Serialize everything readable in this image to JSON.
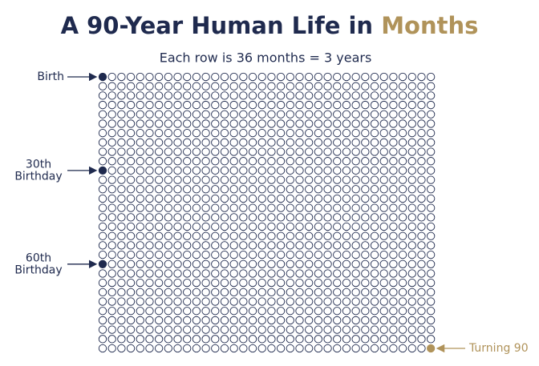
{
  "title": {
    "text": "A 90-Year Human Life in",
    "highlight": "Months"
  },
  "subtitle": "Each row is 36 months = 3 years",
  "grid": {
    "rows": 30,
    "columns": 36
  },
  "annotations": [
    {
      "lines": [
        "Birth"
      ],
      "row": 0,
      "column": 0,
      "side": "left"
    },
    {
      "lines": [
        "30th",
        "Birthday"
      ],
      "row": 10,
      "column": 0,
      "side": "left"
    },
    {
      "lines": [
        "60th",
        "Birthday"
      ],
      "row": 20,
      "column": 0,
      "side": "left"
    },
    {
      "lines": [
        "Turning 90"
      ],
      "row": 29,
      "column": 35,
      "side": "right"
    }
  ]
}
